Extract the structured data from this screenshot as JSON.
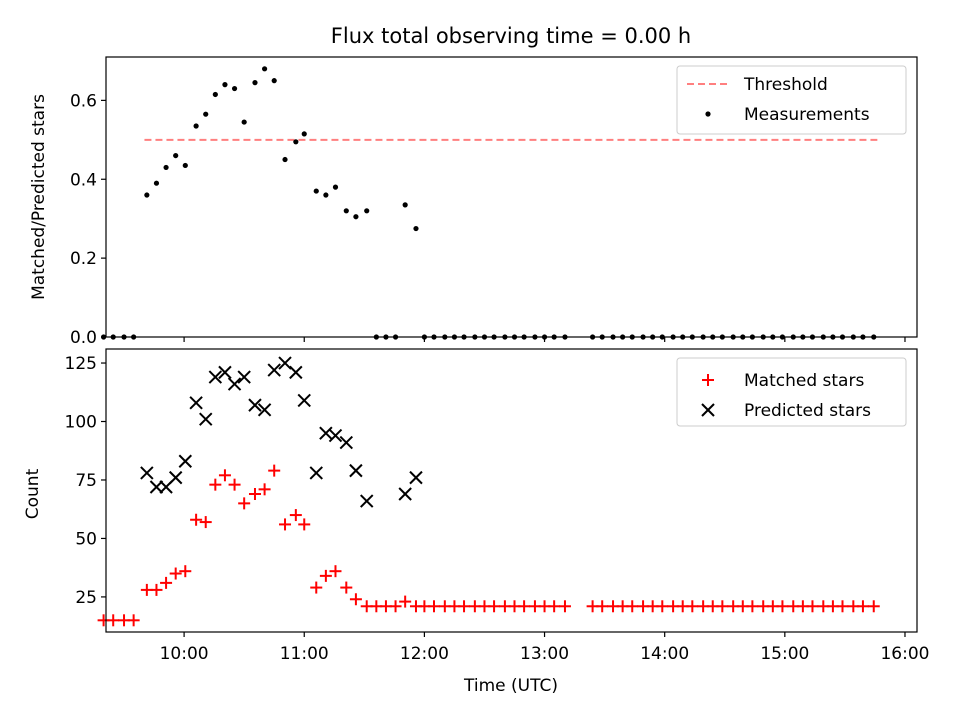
{
  "figure": {
    "title": "Flux total observing time = 0.00 h",
    "xlabel": "Time (UTC)",
    "x_tick_labels": [
      "10:00",
      "11:00",
      "12:00",
      "13:00",
      "14:00",
      "15:00",
      "16:00"
    ]
  },
  "chart_data": [
    {
      "type": "scatter",
      "panel": "top",
      "title": "Flux total observing time = 0.00 h",
      "xlabel": "",
      "ylabel": "Matched/Predicted stars",
      "x_unit": "hours UTC",
      "xlim": [
        9.35,
        16.1
      ],
      "ylim": [
        0.0,
        0.71
      ],
      "x_ticks": [
        10,
        11,
        12,
        13,
        14,
        15,
        16
      ],
      "y_ticks": [
        0.0,
        0.2,
        0.4,
        0.6
      ],
      "y_tick_labels": [
        "0.0",
        "0.2",
        "0.4",
        "0.6"
      ],
      "legend": {
        "placement": "top-right",
        "entries": [
          "Threshold",
          "Measurements"
        ]
      },
      "threshold": {
        "name": "Threshold",
        "value": 0.5,
        "x_range": [
          9.67,
          15.77
        ],
        "color": "#ff7f7f",
        "style": "dashed"
      },
      "series": [
        {
          "name": "Measurements",
          "color": "#000000",
          "marker": "dot",
          "points": [
            [
              9.33,
              0.0
            ],
            [
              9.41,
              0.0
            ],
            [
              9.5,
              0.0
            ],
            [
              9.58,
              0.0
            ],
            [
              9.69,
              0.36
            ],
            [
              9.77,
              0.39
            ],
            [
              9.85,
              0.43
            ],
            [
              9.93,
              0.46
            ],
            [
              10.01,
              0.435
            ],
            [
              10.1,
              0.535
            ],
            [
              10.18,
              0.565
            ],
            [
              10.26,
              0.615
            ],
            [
              10.34,
              0.64
            ],
            [
              10.42,
              0.63
            ],
            [
              10.5,
              0.545
            ],
            [
              10.59,
              0.645
            ],
            [
              10.67,
              0.68
            ],
            [
              10.75,
              0.65
            ],
            [
              10.84,
              0.45
            ],
            [
              10.93,
              0.495
            ],
            [
              11.0,
              0.515
            ],
            [
              11.1,
              0.37
            ],
            [
              11.18,
              0.36
            ],
            [
              11.26,
              0.38
            ],
            [
              11.35,
              0.32
            ],
            [
              11.43,
              0.305
            ],
            [
              11.52,
              0.32
            ],
            [
              11.84,
              0.335
            ],
            [
              11.93,
              0.275
            ],
            [
              11.6,
              0.0
            ],
            [
              11.68,
              0.0
            ],
            [
              11.76,
              0.0
            ],
            [
              12.0,
              0.0
            ],
            [
              12.08,
              0.0
            ],
            [
              12.17,
              0.0
            ],
            [
              12.25,
              0.0
            ],
            [
              12.33,
              0.0
            ],
            [
              12.42,
              0.0
            ],
            [
              12.5,
              0.0
            ],
            [
              12.58,
              0.0
            ],
            [
              12.67,
              0.0
            ],
            [
              12.75,
              0.0
            ],
            [
              12.83,
              0.0
            ],
            [
              12.92,
              0.0
            ],
            [
              13.0,
              0.0
            ],
            [
              13.08,
              0.0
            ],
            [
              13.17,
              0.0
            ],
            [
              13.4,
              0.0
            ],
            [
              13.48,
              0.0
            ],
            [
              13.57,
              0.0
            ],
            [
              13.65,
              0.0
            ],
            [
              13.73,
              0.0
            ],
            [
              13.82,
              0.0
            ],
            [
              13.9,
              0.0
            ],
            [
              13.98,
              0.0
            ],
            [
              14.07,
              0.0
            ],
            [
              14.15,
              0.0
            ],
            [
              14.23,
              0.0
            ],
            [
              14.32,
              0.0
            ],
            [
              14.4,
              0.0
            ],
            [
              14.48,
              0.0
            ],
            [
              14.57,
              0.0
            ],
            [
              14.65,
              0.0
            ],
            [
              14.73,
              0.0
            ],
            [
              14.82,
              0.0
            ],
            [
              14.9,
              0.0
            ],
            [
              14.98,
              0.0
            ],
            [
              15.07,
              0.0
            ],
            [
              15.15,
              0.0
            ],
            [
              15.23,
              0.0
            ],
            [
              15.32,
              0.0
            ],
            [
              15.4,
              0.0
            ],
            [
              15.48,
              0.0
            ],
            [
              15.57,
              0.0
            ],
            [
              15.65,
              0.0
            ],
            [
              15.74,
              0.0
            ]
          ]
        }
      ]
    },
    {
      "type": "scatter",
      "panel": "bottom",
      "xlabel": "Time (UTC)",
      "ylabel": "Count",
      "x_unit": "hours UTC",
      "xlim": [
        9.35,
        16.1
      ],
      "ylim": [
        10,
        131
      ],
      "x_ticks": [
        10,
        11,
        12,
        13,
        14,
        15,
        16
      ],
      "x_tick_labels": [
        "10:00",
        "11:00",
        "12:00",
        "13:00",
        "14:00",
        "15:00",
        "16:00"
      ],
      "y_ticks": [
        25,
        50,
        75,
        100,
        125
      ],
      "y_tick_labels": [
        "25",
        "50",
        "75",
        "100",
        "125"
      ],
      "legend": {
        "placement": "top-right",
        "entries": [
          "Matched stars",
          "Predicted stars"
        ]
      },
      "series": [
        {
          "name": "Matched stars",
          "color": "#ff0000",
          "marker": "plus",
          "points": [
            [
              9.33,
              15
            ],
            [
              9.41,
              15
            ],
            [
              9.5,
              15
            ],
            [
              9.58,
              15
            ],
            [
              9.69,
              28
            ],
            [
              9.77,
              28
            ],
            [
              9.85,
              31
            ],
            [
              9.93,
              35
            ],
            [
              10.01,
              36
            ],
            [
              10.1,
              58
            ],
            [
              10.18,
              57
            ],
            [
              10.26,
              73
            ],
            [
              10.34,
              77
            ],
            [
              10.42,
              73
            ],
            [
              10.5,
              65
            ],
            [
              10.59,
              69
            ],
            [
              10.67,
              71
            ],
            [
              10.75,
              79
            ],
            [
              10.84,
              56
            ],
            [
              10.93,
              60
            ],
            [
              11.0,
              56
            ],
            [
              11.1,
              29
            ],
            [
              11.18,
              34
            ],
            [
              11.26,
              36
            ],
            [
              11.35,
              29
            ],
            [
              11.43,
              24
            ],
            [
              11.52,
              21
            ],
            [
              11.6,
              21
            ],
            [
              11.68,
              21
            ],
            [
              11.76,
              21
            ],
            [
              11.84,
              23
            ],
            [
              11.93,
              21
            ],
            [
              12.0,
              21
            ],
            [
              12.08,
              21
            ],
            [
              12.17,
              21
            ],
            [
              12.25,
              21
            ],
            [
              12.33,
              21
            ],
            [
              12.42,
              21
            ],
            [
              12.5,
              21
            ],
            [
              12.58,
              21
            ],
            [
              12.67,
              21
            ],
            [
              12.75,
              21
            ],
            [
              12.83,
              21
            ],
            [
              12.92,
              21
            ],
            [
              13.0,
              21
            ],
            [
              13.08,
              21
            ],
            [
              13.17,
              21
            ],
            [
              13.4,
              21
            ],
            [
              13.48,
              21
            ],
            [
              13.57,
              21
            ],
            [
              13.65,
              21
            ],
            [
              13.73,
              21
            ],
            [
              13.82,
              21
            ],
            [
              13.9,
              21
            ],
            [
              13.98,
              21
            ],
            [
              14.07,
              21
            ],
            [
              14.15,
              21
            ],
            [
              14.23,
              21
            ],
            [
              14.32,
              21
            ],
            [
              14.4,
              21
            ],
            [
              14.48,
              21
            ],
            [
              14.57,
              21
            ],
            [
              14.65,
              21
            ],
            [
              14.73,
              21
            ],
            [
              14.82,
              21
            ],
            [
              14.9,
              21
            ],
            [
              14.98,
              21
            ],
            [
              15.07,
              21
            ],
            [
              15.15,
              21
            ],
            [
              15.23,
              21
            ],
            [
              15.32,
              21
            ],
            [
              15.4,
              21
            ],
            [
              15.48,
              21
            ],
            [
              15.57,
              21
            ],
            [
              15.65,
              21
            ],
            [
              15.74,
              21
            ]
          ]
        },
        {
          "name": "Predicted stars",
          "color": "#000000",
          "marker": "x",
          "points": [
            [
              9.69,
              78
            ],
            [
              9.77,
              72
            ],
            [
              9.85,
              72
            ],
            [
              9.93,
              76
            ],
            [
              10.01,
              83
            ],
            [
              10.1,
              108
            ],
            [
              10.18,
              101
            ],
            [
              10.26,
              119
            ],
            [
              10.34,
              121
            ],
            [
              10.42,
              116
            ],
            [
              10.5,
              119
            ],
            [
              10.59,
              107
            ],
            [
              10.67,
              105
            ],
            [
              10.75,
              122
            ],
            [
              10.84,
              125
            ],
            [
              10.93,
              121
            ],
            [
              11.0,
              109
            ],
            [
              11.1,
              78
            ],
            [
              11.18,
              95
            ],
            [
              11.26,
              94
            ],
            [
              11.35,
              91
            ],
            [
              11.43,
              79
            ],
            [
              11.52,
              66
            ],
            [
              11.84,
              69
            ],
            [
              11.93,
              76
            ]
          ]
        }
      ]
    }
  ]
}
